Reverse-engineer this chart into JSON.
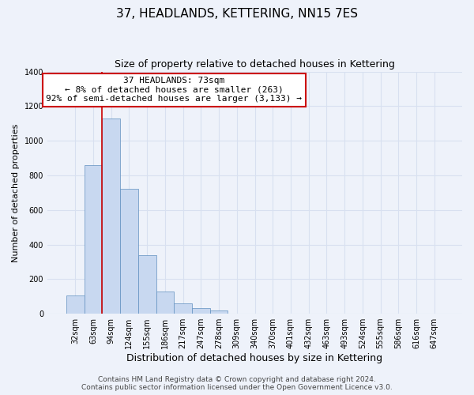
{
  "title": "37, HEADLANDS, KETTERING, NN15 7ES",
  "subtitle": "Size of property relative to detached houses in Kettering",
  "xlabel": "Distribution of detached houses by size in Kettering",
  "ylabel": "Number of detached properties",
  "bar_labels": [
    "32sqm",
    "63sqm",
    "94sqm",
    "124sqm",
    "155sqm",
    "186sqm",
    "217sqm",
    "247sqm",
    "278sqm",
    "309sqm",
    "340sqm",
    "370sqm",
    "401sqm",
    "432sqm",
    "463sqm",
    "493sqm",
    "524sqm",
    "555sqm",
    "586sqm",
    "616sqm",
    "647sqm"
  ],
  "bar_values": [
    107,
    860,
    1130,
    720,
    340,
    130,
    62,
    32,
    18,
    0,
    0,
    0,
    0,
    0,
    0,
    0,
    0,
    0,
    0,
    0,
    0
  ],
  "bar_color": "#c8d8f0",
  "bar_edge_color": "#6090c0",
  "vline_color": "#cc0000",
  "vline_position": 1.5,
  "ylim": [
    0,
    1400
  ],
  "yticks": [
    0,
    200,
    400,
    600,
    800,
    1000,
    1200,
    1400
  ],
  "annotation_title": "37 HEADLANDS: 73sqm",
  "annotation_line1": "← 8% of detached houses are smaller (263)",
  "annotation_line2": "92% of semi-detached houses are larger (3,133) →",
  "annotation_box_color": "#ffffff",
  "annotation_box_edge": "#cc0000",
  "footer_line1": "Contains HM Land Registry data © Crown copyright and database right 2024.",
  "footer_line2": "Contains public sector information licensed under the Open Government Licence v3.0.",
  "background_color": "#eef2fa",
  "grid_color": "#d8e0f0",
  "title_fontsize": 11,
  "subtitle_fontsize": 9,
  "xlabel_fontsize": 9,
  "ylabel_fontsize": 8,
  "tick_fontsize": 7,
  "annot_fontsize": 8,
  "footer_fontsize": 6.5
}
